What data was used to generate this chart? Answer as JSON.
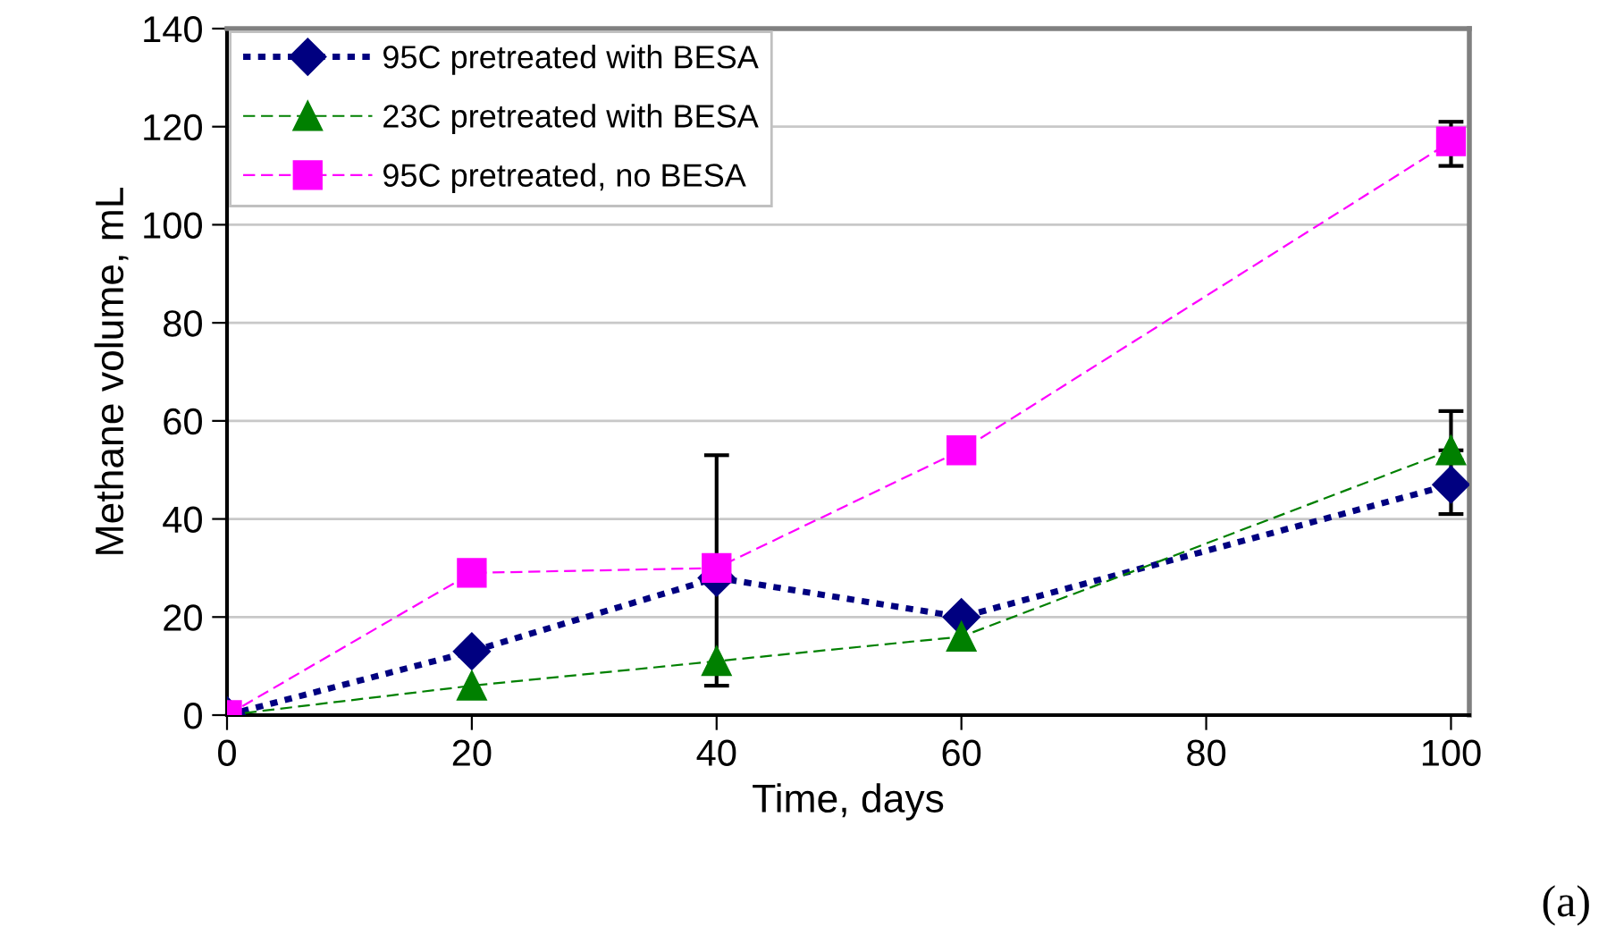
{
  "chart_data": {
    "type": "line",
    "xlabel": "Time, days",
    "ylabel": "Methane volume, mL",
    "x": [
      0,
      20,
      40,
      60,
      100
    ],
    "xlim": [
      0,
      101.5
    ],
    "xticks": [
      0,
      20,
      40,
      60,
      80,
      100
    ],
    "ylim": [
      0,
      140
    ],
    "yticks": [
      0,
      20,
      40,
      60,
      80,
      100,
      120,
      140
    ],
    "grid": "y",
    "legend": "top left",
    "series": [
      {
        "name": "95C pretreated with BESA",
        "color": "#000080",
        "marker": "diamond",
        "line_style": "dotted",
        "values": [
          0,
          13,
          28,
          20,
          47
        ],
        "errors": [
          null,
          null,
          [
            6,
            53
          ],
          null,
          [
            41,
            52
          ]
        ]
      },
      {
        "name": "23C pretreated with BESA",
        "color": "#008000",
        "marker": "triangle",
        "line_style": "dashed",
        "values": [
          0,
          6,
          11,
          16,
          54
        ],
        "errors": [
          null,
          null,
          null,
          null,
          [
            54,
            62
          ]
        ]
      },
      {
        "name": "95C pretreated, no BESA",
        "color": "#ff00ff",
        "marker": "square",
        "line_style": "dashed",
        "values": [
          0,
          29,
          30,
          54,
          117
        ],
        "errors": [
          null,
          null,
          null,
          null,
          [
            112,
            121
          ]
        ]
      }
    ],
    "annotations": [
      "(a)"
    ]
  }
}
